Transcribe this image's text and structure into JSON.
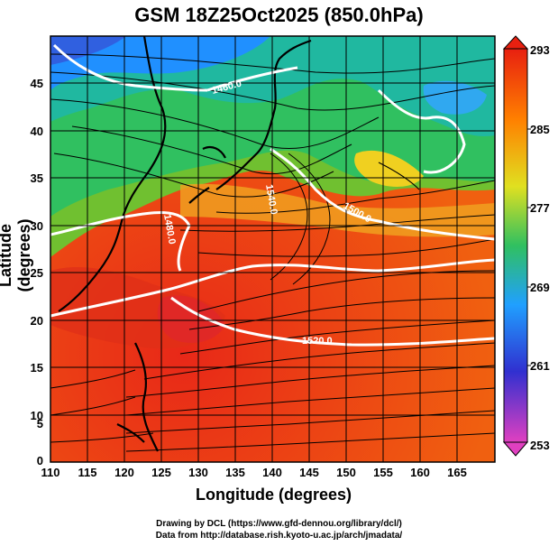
{
  "title": "GSM 18Z25Oct2025 (850.0hPa)",
  "axes": {
    "xlabel": "Longitude (degrees)",
    "ylabel": "Latitude  (degrees)",
    "x_ticks": [
      "110",
      "115",
      "120",
      "125",
      "130",
      "135",
      "140",
      "145",
      "150",
      "155",
      "160",
      "165"
    ],
    "y_ticks": [
      "45",
      "40",
      "35",
      "30",
      "25",
      "20",
      "15",
      "10",
      "5",
      "0"
    ],
    "xlim": [
      110,
      170
    ],
    "ylim": [
      0,
      50
    ]
  },
  "colorbar": {
    "ticks": [
      "293",
      "285",
      "277",
      "269",
      "261",
      "253"
    ],
    "range": [
      253,
      293
    ],
    "colors": [
      "#e040c0",
      "#3030d0",
      "#20a0ff",
      "#30c060",
      "#e0e020",
      "#ff8000",
      "#e82010"
    ]
  },
  "contour_labels": [
    "1520.0",
    "1500.0",
    "1460.0",
    "1480.0",
    "1540.0"
  ],
  "credits": {
    "drawing": "Drawing by DCL (https://www.gfd-dennou.org/library/dcl/)",
    "data": "Data from http://database.rish.kyoto-u.ac.jp/arch/jmadata/"
  }
}
